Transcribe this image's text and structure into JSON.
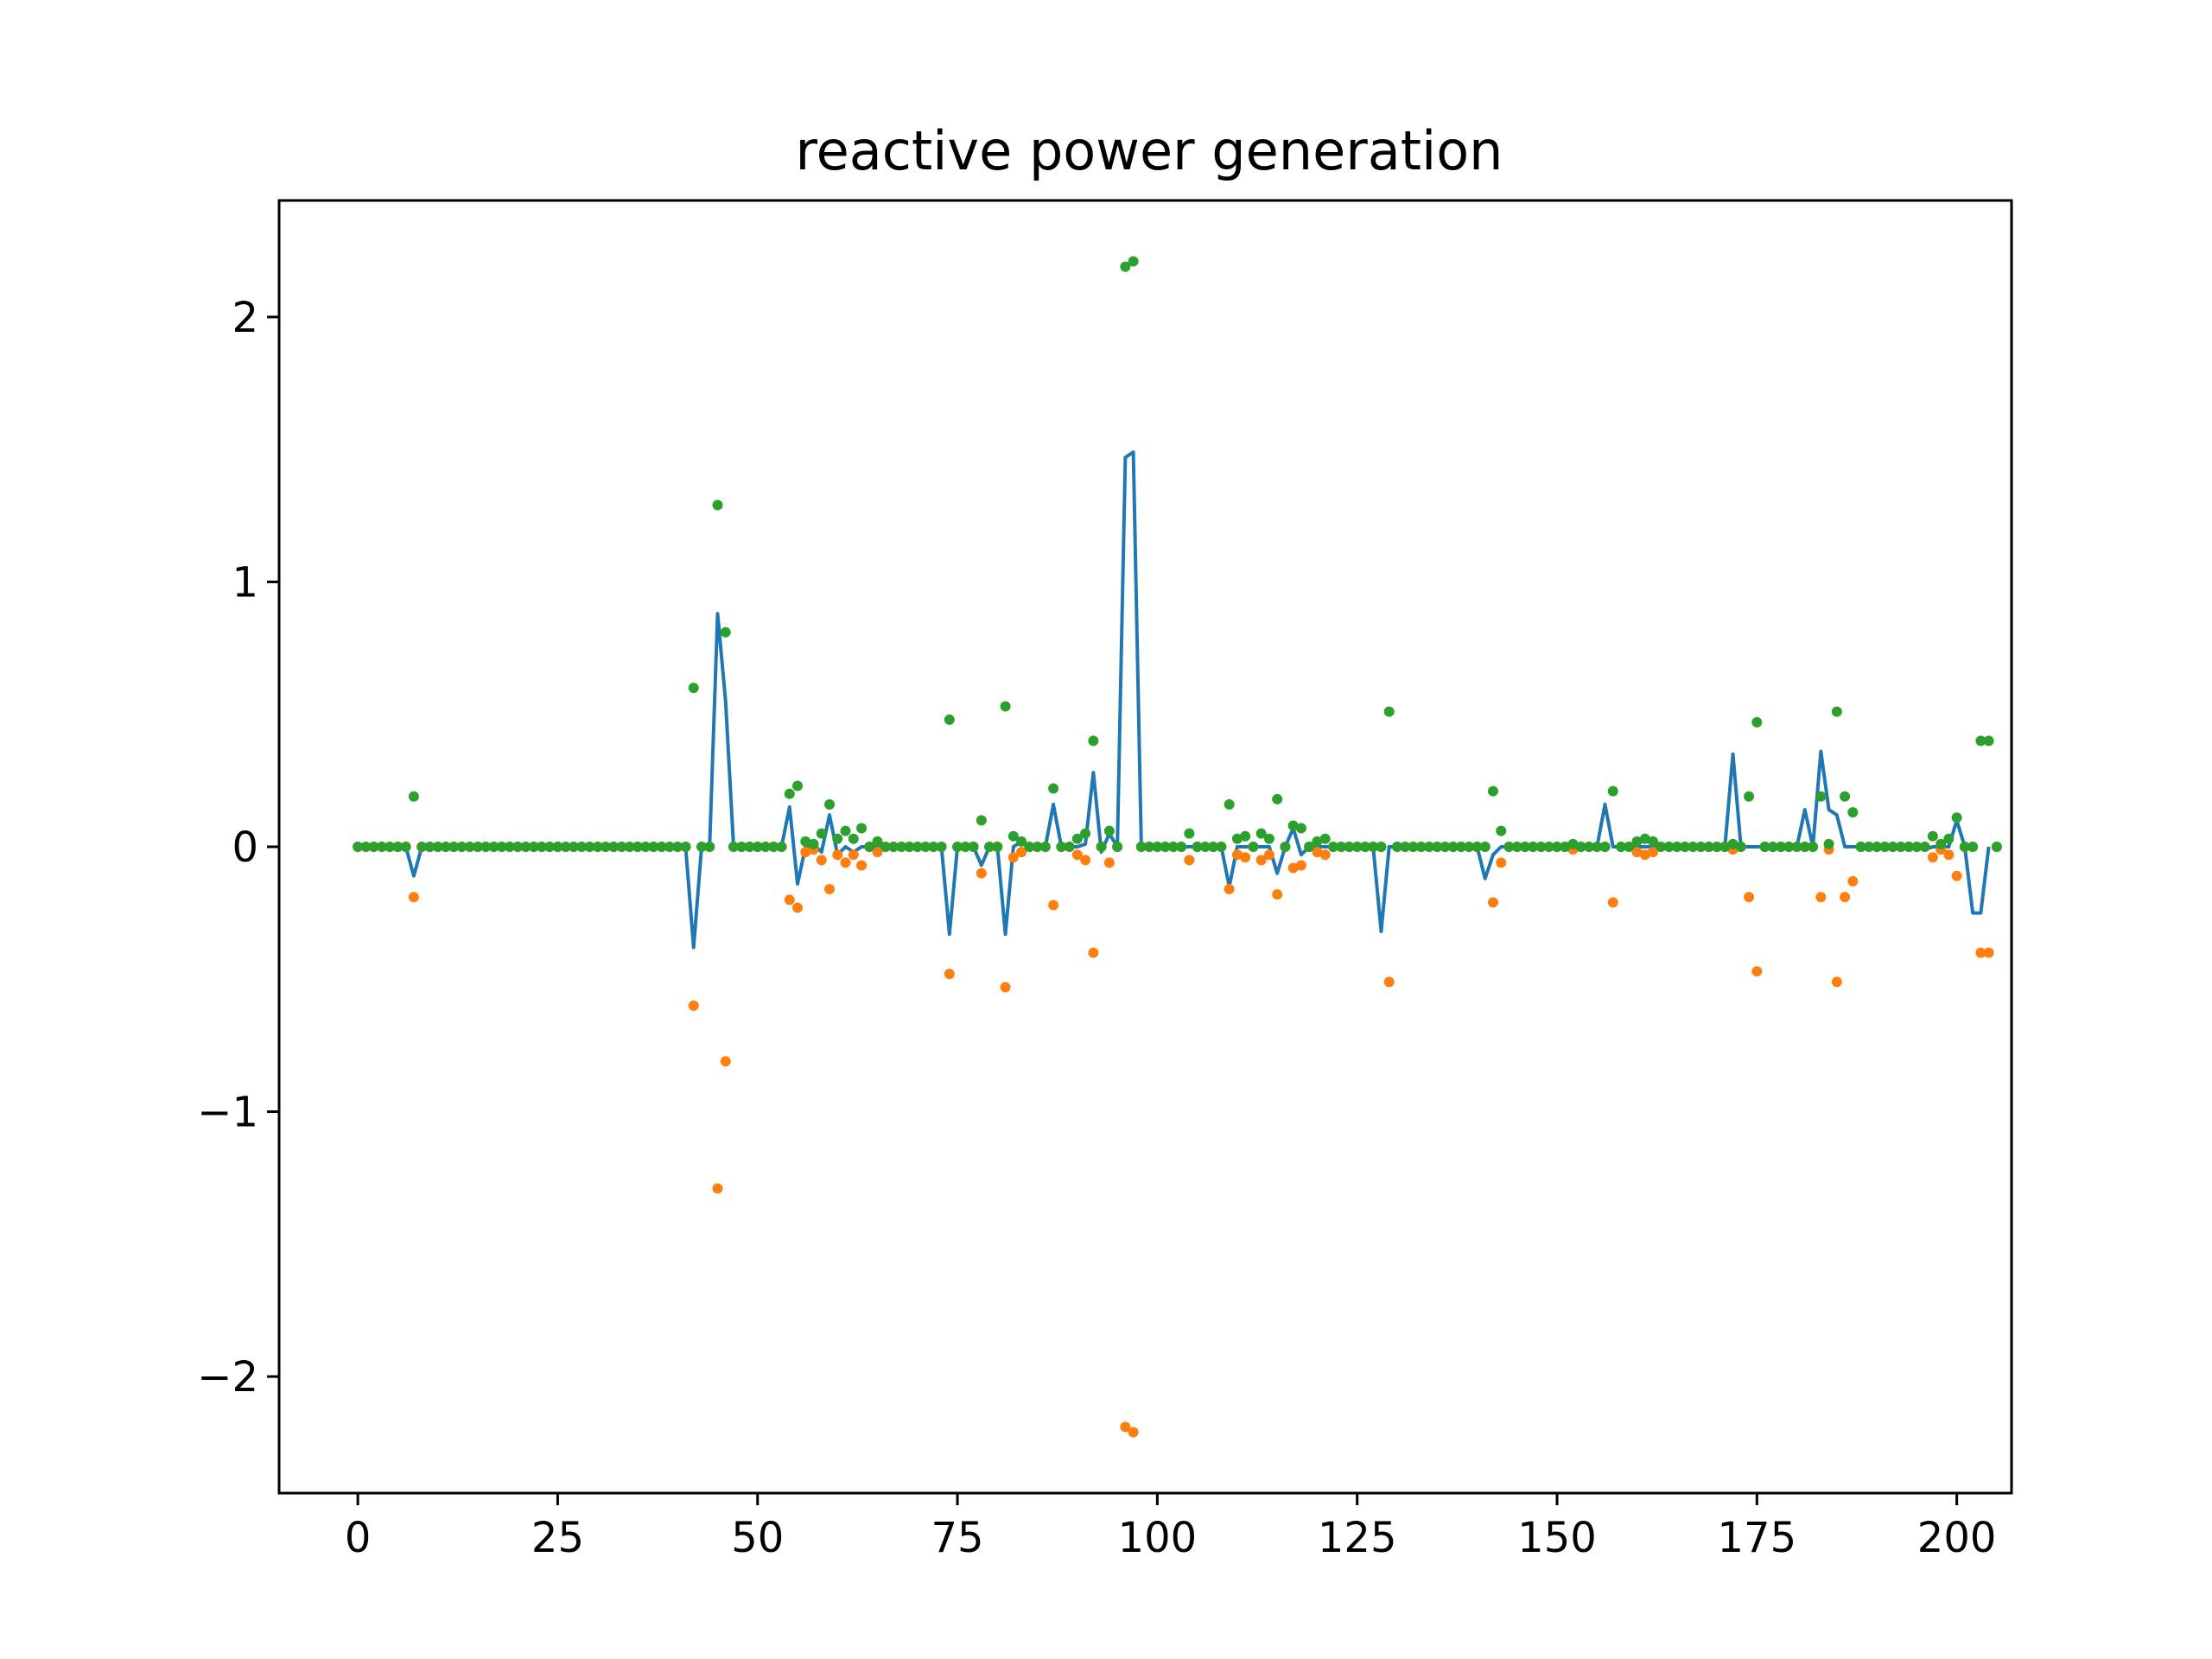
{
  "chart_data": {
    "type": "line",
    "title": "reactive power generation",
    "xlabel": "",
    "ylabel": "",
    "xlim": [
      -9.85,
      206.85
    ],
    "ylim": [
      -2.44,
      2.44
    ],
    "xticks": [
      0,
      25,
      50,
      75,
      100,
      125,
      150,
      175,
      200
    ],
    "yticks": [
      -2,
      -1,
      0,
      1,
      2
    ],
    "xtick_labels": [
      "0",
      "25",
      "50",
      "75",
      "100",
      "125",
      "150",
      "175",
      "200"
    ],
    "ytick_labels": [
      "−2",
      "−1",
      "0",
      "1",
      "2"
    ],
    "grid": false,
    "legend": "none",
    "colors": {
      "line": "#1f77b4",
      "lower": "#ff7f0e",
      "upper": "#2ca02c"
    },
    "x_start": 0,
    "series": [
      {
        "kind": "line",
        "values": [
          0,
          0,
          0,
          0,
          0,
          0,
          0,
          -0.11,
          0,
          0,
          0,
          0,
          0,
          0,
          0,
          0,
          0,
          0,
          0,
          0,
          0,
          0,
          0,
          0,
          0,
          0,
          0,
          0,
          0,
          0,
          0,
          0,
          0,
          0,
          0,
          0,
          0,
          0,
          0,
          0,
          0,
          0,
          -0.38,
          0,
          0,
          0.88,
          0.55,
          0,
          0,
          0,
          0,
          0,
          0,
          0,
          0.15,
          -0.14,
          0,
          0.01,
          -0.02,
          0.12,
          -0.03,
          0,
          -0.02,
          0,
          0,
          0,
          0,
          0,
          0,
          0,
          0,
          0,
          0,
          0,
          -0.33,
          0,
          0,
          0,
          -0.07,
          0,
          0,
          -0.33,
          0,
          0.02,
          0,
          0,
          0,
          0.16,
          0,
          0,
          0,
          0.01,
          0.28,
          -0.02,
          0.05,
          0,
          1.47,
          1.49,
          0,
          0,
          0,
          0,
          0,
          0,
          0,
          0,
          0,
          0,
          0,
          -0.15,
          0,
          0,
          0,
          0,
          0,
          -0.1,
          0,
          0.07,
          -0.03,
          0,
          0,
          0,
          0,
          0,
          0,
          0,
          0,
          0,
          -0.32,
          0,
          0,
          0,
          0,
          0,
          0,
          0,
          0,
          0,
          0,
          0,
          0,
          -0.12,
          -0.03,
          0,
          0,
          0,
          0,
          0,
          0,
          0,
          0,
          0,
          0,
          0,
          0,
          0,
          0.16,
          0,
          0,
          0,
          0,
          0,
          0,
          0,
          0,
          0,
          0,
          0,
          0,
          0,
          0,
          0,
          0.35,
          0,
          0,
          0,
          0,
          0,
          0,
          0,
          0,
          0.14,
          0,
          0.36,
          0.14,
          0.12,
          0,
          0,
          0,
          0,
          0,
          0,
          0,
          0,
          0,
          0,
          -0.01,
          0,
          0,
          0,
          0.1,
          0,
          -0.25,
          -0.25,
          0
        ]
      },
      {
        "kind": "scatter",
        "values": [
          0,
          0,
          0,
          0,
          0,
          0,
          0,
          -0.19,
          0,
          0,
          0,
          0,
          0,
          0,
          0,
          0,
          0,
          0,
          0,
          0,
          0,
          0,
          0,
          0,
          0,
          0,
          0,
          0,
          0,
          0,
          0,
          0,
          0,
          0,
          0,
          0,
          0,
          0,
          0,
          0,
          0,
          0,
          -0.6,
          0,
          0,
          -1.29,
          -0.81,
          0,
          0,
          0,
          0,
          0,
          0,
          0,
          -0.2,
          -0.23,
          -0.02,
          -0.01,
          -0.05,
          -0.16,
          -0.03,
          -0.06,
          -0.03,
          -0.07,
          0,
          -0.02,
          0,
          0,
          0,
          0,
          0,
          0,
          0,
          0,
          -0.48,
          0,
          0,
          0,
          -0.1,
          0,
          0,
          -0.53,
          -0.04,
          -0.02,
          0,
          0,
          0,
          -0.22,
          0,
          0,
          -0.03,
          -0.05,
          -0.4,
          0,
          -0.06,
          0,
          -2.19,
          -2.21,
          0,
          0,
          0,
          0,
          0,
          0,
          -0.05,
          0,
          0,
          0,
          0,
          -0.16,
          -0.03,
          -0.04,
          0,
          -0.05,
          -0.03,
          -0.18,
          0,
          -0.08,
          -0.07,
          0,
          -0.02,
          -0.03,
          0,
          0,
          0,
          0,
          0,
          0,
          0,
          -0.51,
          0,
          0,
          0,
          0,
          0,
          0,
          0,
          0,
          0,
          0,
          0,
          0,
          -0.21,
          -0.06,
          0,
          0,
          0,
          0,
          0,
          0,
          0,
          0,
          -0.01,
          0,
          0,
          0,
          0,
          -0.21,
          0,
          0,
          -0.02,
          -0.03,
          -0.02,
          0,
          0,
          0,
          0,
          0,
          0,
          0,
          0,
          0,
          -0.01,
          0,
          -0.19,
          -0.47,
          0,
          0,
          0,
          0,
          0,
          0,
          0,
          -0.19,
          -0.01,
          -0.51,
          -0.19,
          -0.13,
          0,
          0,
          0,
          0,
          0,
          0,
          0,
          0,
          0,
          -0.04,
          -0.01,
          -0.03,
          -0.11,
          0,
          0,
          -0.4,
          -0.4,
          0
        ]
      },
      {
        "kind": "scatter",
        "values": [
          0,
          0,
          0,
          0,
          0,
          0,
          0,
          0.19,
          0,
          0,
          0,
          0,
          0,
          0,
          0,
          0,
          0,
          0,
          0,
          0,
          0,
          0,
          0,
          0,
          0,
          0,
          0,
          0,
          0,
          0,
          0,
          0,
          0,
          0,
          0,
          0,
          0,
          0,
          0,
          0,
          0,
          0,
          0.6,
          0,
          0,
          1.29,
          0.81,
          0,
          0,
          0,
          0,
          0,
          0,
          0,
          0.2,
          0.23,
          0.02,
          0.01,
          0.05,
          0.16,
          0.03,
          0.06,
          0.03,
          0.07,
          0,
          0.02,
          0,
          0,
          0,
          0,
          0,
          0,
          0,
          0,
          0.48,
          0,
          0,
          0,
          0.1,
          0,
          0,
          0.53,
          0.04,
          0.02,
          0,
          0,
          0,
          0.22,
          0,
          0,
          0.03,
          0.05,
          0.4,
          0,
          0.06,
          0,
          2.19,
          2.21,
          0,
          0,
          0,
          0,
          0,
          0,
          0.05,
          0,
          0,
          0,
          0,
          0.16,
          0.03,
          0.04,
          0,
          0.05,
          0.03,
          0.18,
          0,
          0.08,
          0.07,
          0,
          0.02,
          0.03,
          0,
          0,
          0,
          0,
          0,
          0,
          0,
          0.51,
          0,
          0,
          0,
          0,
          0,
          0,
          0,
          0,
          0,
          0,
          0,
          0,
          0.21,
          0.06,
          0,
          0,
          0,
          0,
          0,
          0,
          0,
          0,
          0.01,
          0,
          0,
          0,
          0,
          0.21,
          0,
          0,
          0.02,
          0.03,
          0.02,
          0,
          0,
          0,
          0,
          0,
          0,
          0,
          0,
          0,
          0.01,
          0,
          0.19,
          0.47,
          0,
          0,
          0,
          0,
          0,
          0,
          0,
          0.19,
          0.01,
          0.51,
          0.19,
          0.13,
          0,
          0,
          0,
          0,
          0,
          0,
          0,
          0,
          0,
          0.04,
          0.01,
          0.03,
          0.11,
          0,
          0,
          0.4,
          0.4,
          0
        ]
      }
    ]
  }
}
